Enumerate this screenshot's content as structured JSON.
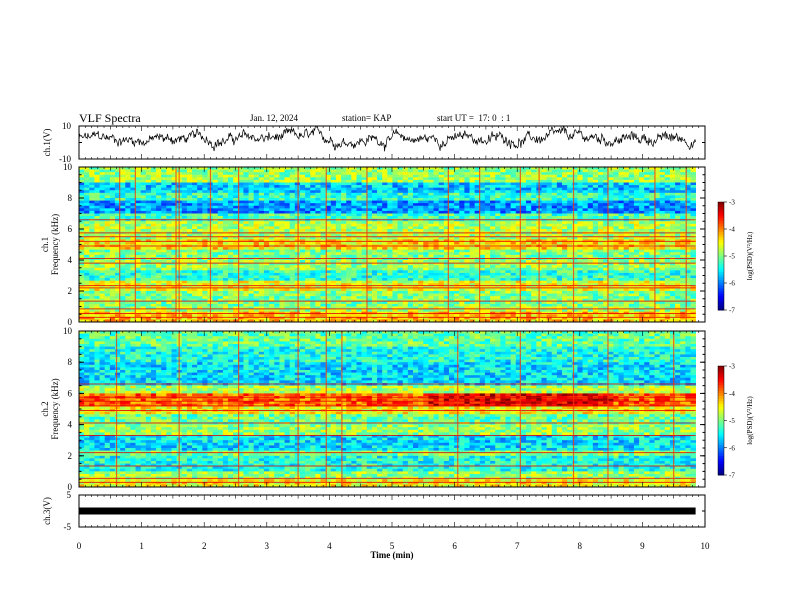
{
  "header": {
    "title": "VLF Spectra",
    "date": "Jan. 12, 2024",
    "station": "station= KAP",
    "start": "start UT =  17: 0  : 1"
  },
  "chart_data": [
    {
      "type": "line",
      "name": "waveform-ch1",
      "ylabel": "ch.1(V)",
      "ylim": [
        -10,
        10
      ],
      "yticks": [
        -10,
        10
      ],
      "xlim": [
        0,
        10
      ],
      "x_extent_min": [
        0,
        9.85
      ],
      "description": "noisy waveform oscillating mostly between about -5 and +10 V"
    },
    {
      "type": "heatmap",
      "name": "spectrogram-ch1",
      "ylabel": "ch.1\nFrequency (kHz)",
      "ylim": [
        0,
        10
      ],
      "yticks": [
        0,
        2,
        4,
        6,
        8,
        10
      ],
      "xlim": [
        0,
        10
      ],
      "colorbar": {
        "label": "log(PSD)(V²/Hz)",
        "range": [
          -7,
          -3
        ],
        "ticks": [
          "-3",
          "-4",
          "-5",
          "-6",
          "-7"
        ]
      },
      "bands": [
        {
          "from": 0.0,
          "to": 0.6,
          "level": -4.3
        },
        {
          "from": 0.6,
          "to": 1.0,
          "level": -4.8
        },
        {
          "from": 1.0,
          "to": 2.0,
          "level": -5.0
        },
        {
          "from": 2.0,
          "to": 2.6,
          "level": -4.6
        },
        {
          "from": 2.6,
          "to": 3.3,
          "level": -5.3
        },
        {
          "from": 3.3,
          "to": 4.0,
          "level": -4.9
        },
        {
          "from": 4.0,
          "to": 4.6,
          "level": -5.0
        },
        {
          "from": 4.6,
          "to": 5.4,
          "level": -4.4
        },
        {
          "from": 5.4,
          "to": 6.5,
          "level": -4.8
        },
        {
          "from": 6.5,
          "to": 7.0,
          "level": -5.2
        },
        {
          "from": 7.0,
          "to": 7.8,
          "level": -5.9
        },
        {
          "from": 7.8,
          "to": 8.4,
          "level": -5.3
        },
        {
          "from": 8.4,
          "to": 9.0,
          "level": -5.7
        },
        {
          "from": 9.0,
          "to": 10.0,
          "level": -4.9
        }
      ],
      "lines_khz": [
        0.3,
        0.55,
        0.85,
        1.35,
        2.2,
        2.35,
        3.8,
        4.1,
        4.9,
        5.2,
        5.5,
        5.75,
        6.6
      ],
      "bursts_min": [
        0.65,
        0.9,
        1.55,
        1.6,
        2.1,
        2.55,
        3.5,
        3.95,
        4.6,
        5.9,
        6.4,
        7.05,
        7.35,
        7.9,
        8.45,
        9.2,
        9.7
      ]
    },
    {
      "type": "heatmap",
      "name": "spectrogram-ch2",
      "ylabel": "ch.2\nFrequency (kHz)",
      "ylim": [
        0,
        10
      ],
      "yticks": [
        0,
        2,
        4,
        6,
        8,
        10
      ],
      "xlim": [
        0,
        10
      ],
      "colorbar": {
        "label": "log(PSD)(V²/Hz)",
        "range": [
          -7,
          -3
        ],
        "ticks": [
          "-3",
          "-4",
          "-5",
          "-6",
          "-7"
        ]
      },
      "bands": [
        {
          "from": 0.0,
          "to": 0.5,
          "level": -4.5
        },
        {
          "from": 0.5,
          "to": 1.0,
          "level": -4.9
        },
        {
          "from": 1.0,
          "to": 2.0,
          "level": -5.4
        },
        {
          "from": 2.0,
          "to": 2.4,
          "level": -5.0
        },
        {
          "from": 2.4,
          "to": 3.3,
          "level": -5.6
        },
        {
          "from": 3.3,
          "to": 4.0,
          "level": -4.9
        },
        {
          "from": 4.0,
          "to": 4.6,
          "level": -5.1
        },
        {
          "from": 4.6,
          "to": 5.2,
          "level": -4.5
        },
        {
          "from": 5.2,
          "to": 6.0,
          "level": -3.9
        },
        {
          "from": 6.0,
          "to": 6.5,
          "level": -4.8
        },
        {
          "from": 6.5,
          "to": 8.0,
          "level": -5.6
        },
        {
          "from": 8.0,
          "to": 9.0,
          "level": -5.4
        },
        {
          "from": 9.0,
          "to": 10.0,
          "level": -5.1
        }
      ],
      "lines_khz": [
        0.3,
        0.55,
        1.35,
        2.2,
        3.3,
        4.1,
        4.9,
        5.2,
        5.5,
        5.75,
        6.6
      ],
      "bursts_min": [
        0.6,
        1.6,
        2.55,
        3.5,
        3.95,
        4.2,
        6.05,
        7.05,
        7.9,
        8.45,
        9.5
      ]
    },
    {
      "type": "line",
      "name": "waveform-ch3",
      "ylabel": "ch.3(V)",
      "ylim": [
        -5,
        5
      ],
      "yticks": [
        -5,
        5
      ],
      "xlim": [
        0,
        10
      ],
      "y_value": 0,
      "x_extent_min": [
        0,
        9.85
      ],
      "description": "thick flat line near 0 V"
    }
  ],
  "xaxis": {
    "label": "Time (min)",
    "ticks": [
      "0",
      "1",
      "2",
      "3",
      "4",
      "5",
      "6",
      "7",
      "8",
      "9",
      "10"
    ]
  },
  "colorbar_label": "log(PSD)(V²/Hz)"
}
